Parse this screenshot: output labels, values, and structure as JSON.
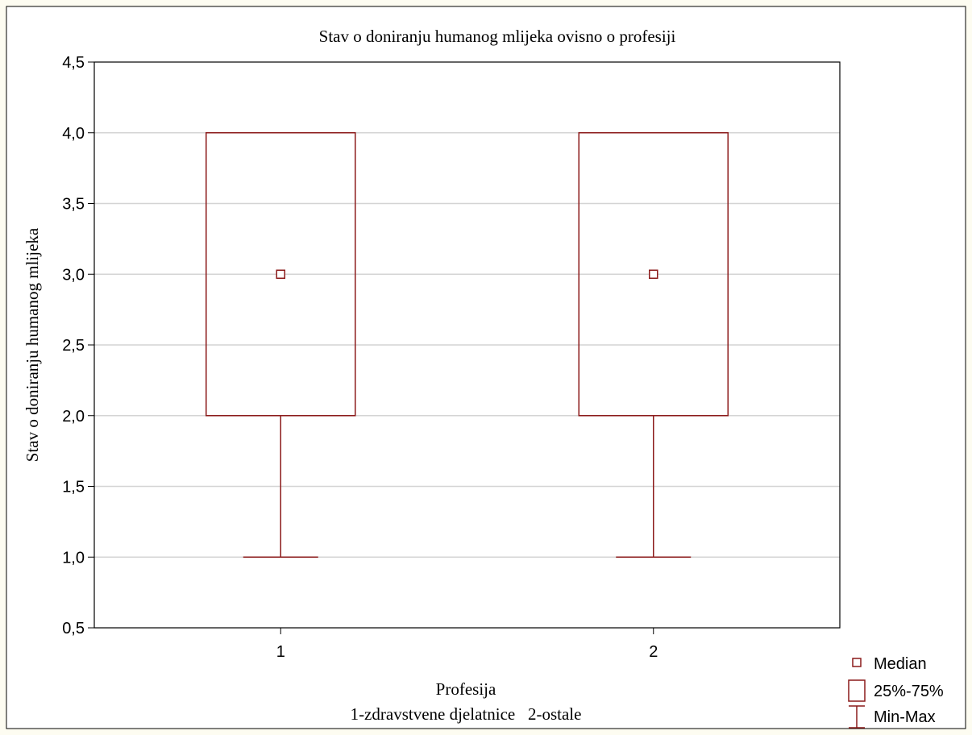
{
  "chart_data": {
    "type": "box",
    "title": "Stav o doniranju humanog mlijeka ovisno o profesiji",
    "xlabel": "Profesija",
    "xlabel_sub": "1-zdravstvene djelatnice   2-ostale",
    "ylabel": "Stav o doniranju humanog mlijeka",
    "categories": [
      "1",
      "2"
    ],
    "ylim": [
      0.5,
      4.5
    ],
    "yticks": [
      "0,5",
      "1,0",
      "1,5",
      "2,0",
      "2,5",
      "3,0",
      "3,5",
      "4,0",
      "4,5"
    ],
    "grid": true,
    "color": "#8b1a1a",
    "boxes": [
      {
        "category": "1",
        "min": 1.0,
        "q1": 2.0,
        "median": 3.0,
        "q3": 4.0,
        "max": 4.0
      },
      {
        "category": "2",
        "min": 1.0,
        "q1": 2.0,
        "median": 3.0,
        "q3": 4.0,
        "max": 4.0
      }
    ],
    "legend": {
      "position": "bottom-right",
      "items": [
        {
          "label": "Median",
          "marker": "small-square"
        },
        {
          "label": "25%-75%",
          "marker": "box"
        },
        {
          "label": "Min-Max",
          "marker": "whisker"
        }
      ]
    }
  }
}
